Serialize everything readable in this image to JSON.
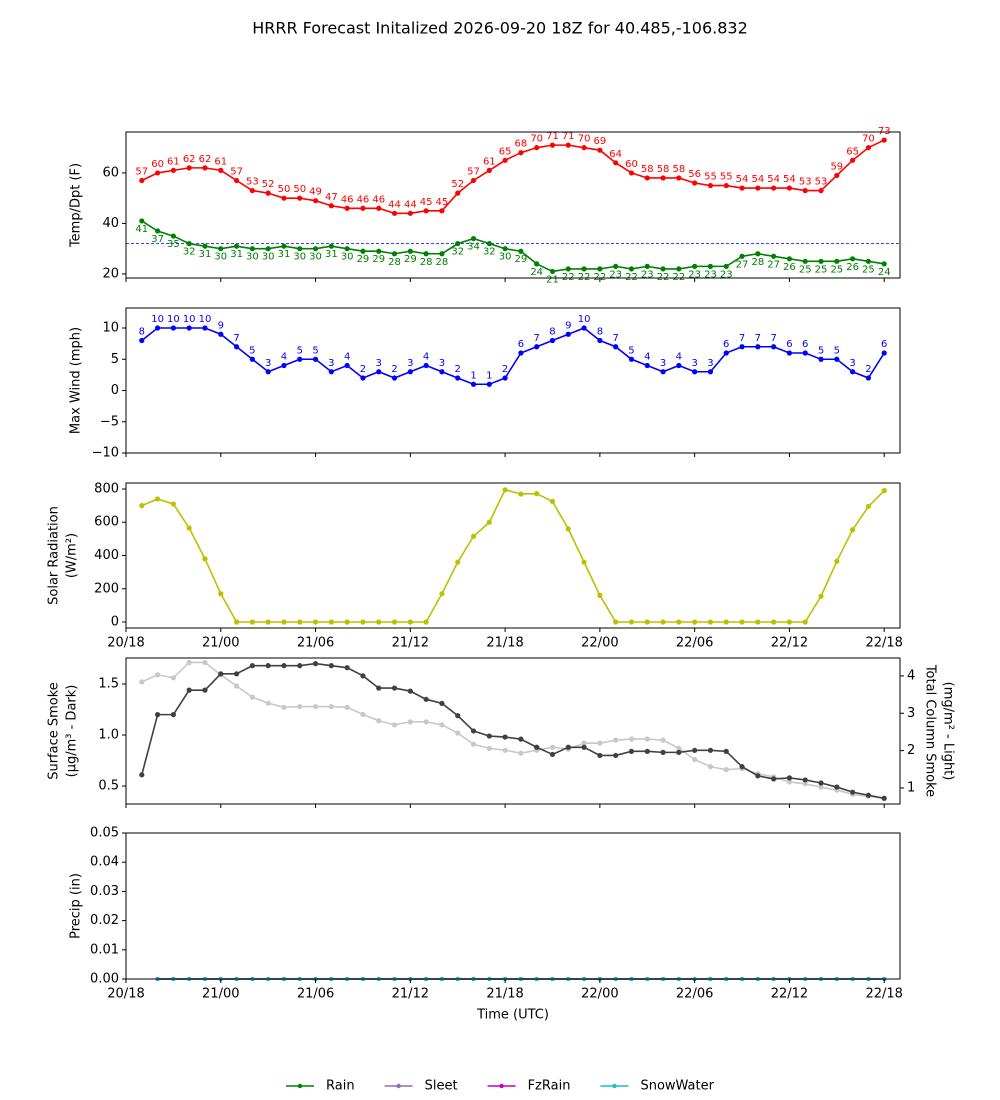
{
  "title": "HRRR Forecast Initalized 2026-09-20 18Z for 40.485,-106.832",
  "chart_data": [
    {
      "type": "line",
      "ylabel": "Temp/Dpt (F)",
      "x": [
        1,
        2,
        3,
        4,
        5,
        6,
        7,
        8,
        9,
        10,
        11,
        12,
        13,
        14,
        15,
        16,
        17,
        18,
        19,
        20,
        21,
        22,
        23,
        24,
        25,
        26,
        27,
        28,
        29,
        30,
        31,
        32,
        33,
        34,
        35,
        36,
        37,
        38,
        39,
        40,
        41,
        42,
        43,
        44,
        45,
        46,
        47,
        48
      ],
      "xlim": [
        0,
        49
      ],
      "xticks": [
        0,
        6,
        12,
        18,
        24,
        30,
        36,
        42,
        48
      ],
      "xticklabels": false,
      "ylim": [
        18.4,
        76.2
      ],
      "yticks": [
        20,
        40,
        60
      ],
      "hline": {
        "value": 32,
        "color": "#0000ff",
        "style": "dashed"
      },
      "series": [
        {
          "color": "#ff0000",
          "labels": "above",
          "values": [
            57,
            60,
            61,
            62,
            62,
            61,
            57,
            53,
            52,
            50,
            50,
            49,
            47,
            46,
            46,
            46,
            44,
            44,
            45,
            45,
            52,
            57,
            61,
            65,
            68,
            70,
            71,
            71,
            70,
            69,
            64,
            60,
            58,
            58,
            58,
            56,
            55,
            55,
            54,
            54,
            54,
            54,
            53,
            53,
            59,
            65,
            70,
            73
          ]
        },
        {
          "color": "#008000",
          "labels": "below",
          "values": [
            41,
            37,
            35,
            32,
            31,
            30,
            31,
            30,
            30,
            31,
            30,
            30,
            31,
            30,
            29,
            29,
            28,
            29,
            28,
            28,
            32,
            34,
            32,
            30,
            29,
            24,
            21,
            22,
            22,
            22,
            23,
            22,
            23,
            22,
            22,
            23,
            23,
            23,
            27,
            28,
            27,
            26,
            25,
            25,
            25,
            26,
            25,
            24
          ]
        }
      ]
    },
    {
      "type": "line",
      "ylabel": "Max Wind (mph)",
      "x": [
        1,
        2,
        3,
        4,
        5,
        6,
        7,
        8,
        9,
        10,
        11,
        12,
        13,
        14,
        15,
        16,
        17,
        18,
        19,
        20,
        21,
        22,
        23,
        24,
        25,
        26,
        27,
        28,
        29,
        30,
        31,
        32,
        33,
        34,
        35,
        36,
        37,
        38,
        39,
        40,
        41,
        42,
        43,
        44,
        45,
        46,
        47,
        48
      ],
      "xlim": [
        0,
        49
      ],
      "xticks": [
        0,
        6,
        12,
        18,
        24,
        30,
        36,
        42,
        48
      ],
      "xticklabels": false,
      "ylim": [
        -10,
        13.2
      ],
      "yticks": [
        {
          "value": -10,
          "label": "−10"
        },
        {
          "value": -5,
          "label": "−5"
        },
        0,
        5,
        10
      ],
      "series": [
        {
          "color": "#0000ff",
          "labels": "above",
          "values": [
            8,
            10,
            10,
            10,
            10,
            9,
            7,
            5,
            3,
            4,
            5,
            5,
            3,
            4,
            2,
            3,
            2,
            3,
            4,
            3,
            2,
            1,
            1,
            2,
            6,
            7,
            8,
            9,
            10,
            8,
            7,
            5,
            4,
            3,
            4,
            3,
            3,
            6,
            7,
            7,
            7,
            6,
            6,
            5,
            5,
            3,
            2,
            6
          ]
        }
      ]
    },
    {
      "type": "line",
      "ylabel": [
        "Solar Radiation",
        "(W/m²)"
      ],
      "x": [
        1,
        2,
        3,
        4,
        5,
        6,
        7,
        8,
        9,
        10,
        11,
        12,
        13,
        14,
        15,
        16,
        17,
        18,
        19,
        20,
        21,
        22,
        23,
        24,
        25,
        26,
        27,
        28,
        29,
        30,
        31,
        32,
        33,
        34,
        35,
        36,
        37,
        38,
        39,
        40,
        41,
        42,
        43,
        44,
        45,
        46,
        47,
        48
      ],
      "xlim": [
        0,
        49
      ],
      "xticks": [
        {
          "value": 0,
          "label": "20/18"
        },
        {
          "value": 6,
          "label": "21/00"
        },
        {
          "value": 12,
          "label": "21/06"
        },
        {
          "value": 18,
          "label": "21/12"
        },
        {
          "value": 24,
          "label": "21/18"
        },
        {
          "value": 30,
          "label": "22/00"
        },
        {
          "value": 36,
          "label": "22/06"
        },
        {
          "value": 42,
          "label": "22/12"
        },
        {
          "value": 48,
          "label": "22/18"
        }
      ],
      "ylim": [
        -36,
        836
      ],
      "yticks": [
        0,
        200,
        400,
        600,
        800
      ],
      "series": [
        {
          "color": "#bfbf00",
          "values": [
            700,
            740,
            710,
            565,
            380,
            170,
            0,
            0,
            0,
            0,
            0,
            0,
            0,
            0,
            0,
            0,
            0,
            0,
            0,
            170,
            360,
            515,
            600,
            795,
            770,
            772,
            725,
            560,
            360,
            160,
            0,
            0,
            0,
            0,
            0,
            0,
            0,
            0,
            0,
            0,
            0,
            0,
            0,
            155,
            365,
            555,
            695,
            790
          ]
        }
      ]
    },
    {
      "type": "line",
      "ylabel": [
        "Surface Smoke",
        "(µg/m³ - Dark)"
      ],
      "y2label": [
        "Total Column Smoke",
        "(mg/m² - Light)"
      ],
      "x": [
        1,
        2,
        3,
        4,
        5,
        6,
        7,
        8,
        9,
        10,
        11,
        12,
        13,
        14,
        15,
        16,
        17,
        18,
        19,
        20,
        21,
        22,
        23,
        24,
        25,
        26,
        27,
        28,
        29,
        30,
        31,
        32,
        33,
        34,
        35,
        36,
        37,
        38,
        39,
        40,
        41,
        42,
        43,
        44,
        45,
        46,
        47,
        48
      ],
      "xlim": [
        0,
        49
      ],
      "xticks": [
        0,
        6,
        12,
        18,
        24,
        30,
        36,
        42,
        48
      ],
      "xticklabels": false,
      "ylim": [
        0.324,
        1.755
      ],
      "yticks": [
        0.5,
        {
          "value": 1,
          "label": "1.0"
        },
        1.5
      ],
      "y2lim": [
        0.57,
        4.48
      ],
      "y2ticks": [
        1,
        2,
        3,
        4
      ],
      "series": [
        {
          "color": "#c8c8c8",
          "axis": "y2",
          "values": [
            3.84,
            4.03,
            3.95,
            4.36,
            4.36,
            4.03,
            3.73,
            3.43,
            3.27,
            3.16,
            3.18,
            3.18,
            3.18,
            3.16,
            2.97,
            2.8,
            2.69,
            2.77,
            2.77,
            2.69,
            2.47,
            2.17,
            2.06,
            2.01,
            1.93,
            2.01,
            2.09,
            2.04,
            2.2,
            2.2,
            2.28,
            2.31,
            2.31,
            2.28,
            2.06,
            1.76,
            1.57,
            1.49,
            1.52,
            1.38,
            1.3,
            1.16,
            1.11,
            1.02,
            0.94,
            0.83,
            0.78,
            0.72
          ]
        },
        {
          "color": "#404040",
          "values": [
            0.61,
            1.2,
            1.2,
            1.44,
            1.44,
            1.6,
            1.6,
            1.68,
            1.68,
            1.68,
            1.68,
            1.7,
            1.68,
            1.66,
            1.58,
            1.46,
            1.46,
            1.43,
            1.35,
            1.31,
            1.19,
            1.04,
            0.99,
            0.98,
            0.96,
            0.88,
            0.81,
            0.88,
            0.88,
            0.8,
            0.8,
            0.84,
            0.84,
            0.83,
            0.83,
            0.85,
            0.85,
            0.84,
            0.69,
            0.6,
            0.57,
            0.58,
            0.56,
            0.53,
            0.49,
            0.44,
            0.41,
            0.38
          ]
        }
      ]
    },
    {
      "type": "line",
      "ylabel": "Precip (in)",
      "xlabel": "Time (UTC)",
      "legend": "below",
      "x": [
        2,
        3,
        4,
        5,
        6,
        7,
        8,
        9,
        10,
        11,
        12,
        13,
        14,
        15,
        16,
        17,
        18,
        19,
        20,
        21,
        22,
        23,
        24,
        25,
        26,
        27,
        28,
        29,
        30,
        31,
        32,
        33,
        34,
        35,
        36,
        37,
        38,
        39,
        40,
        41,
        42,
        43,
        44,
        45,
        46,
        47,
        48
      ],
      "xlim": [
        0,
        49
      ],
      "xticks": [
        {
          "value": 0,
          "label": "20/18"
        },
        {
          "value": 6,
          "label": "21/00"
        },
        {
          "value": 12,
          "label": "21/06"
        },
        {
          "value": 18,
          "label": "21/12"
        },
        {
          "value": 24,
          "label": "21/18"
        },
        {
          "value": 30,
          "label": "22/00"
        },
        {
          "value": 36,
          "label": "22/06"
        },
        {
          "value": 42,
          "label": "22/12"
        },
        {
          "value": 48,
          "label": "22/18"
        }
      ],
      "ylim": [
        0,
        0.05
      ],
      "yticks": [
        {
          "value": 0,
          "label": "0.00"
        },
        0.01,
        0.02,
        0.03,
        0.04,
        0.05
      ],
      "series": [
        {
          "name": "Rain",
          "color": "#008000",
          "values": [
            0,
            0,
            0,
            0,
            0,
            0,
            0,
            0,
            0,
            0,
            0,
            0,
            0,
            0,
            0,
            0,
            0,
            0,
            0,
            0,
            0,
            0,
            0,
            0,
            0,
            0,
            0,
            0,
            0,
            0,
            0,
            0,
            0,
            0,
            0,
            0,
            0,
            0,
            0,
            0,
            0,
            0,
            0,
            0,
            0,
            0,
            0
          ]
        },
        {
          "name": "Sleet",
          "color": "#8e6fae",
          "values": [
            0,
            0,
            0,
            0,
            0,
            0,
            0,
            0,
            0,
            0,
            0,
            0,
            0,
            0,
            0,
            0,
            0,
            0,
            0,
            0,
            0,
            0,
            0,
            0,
            0,
            0,
            0,
            0,
            0,
            0,
            0,
            0,
            0,
            0,
            0,
            0,
            0,
            0,
            0,
            0,
            0,
            0,
            0,
            0,
            0,
            0,
            0
          ]
        },
        {
          "name": "FzRain",
          "color": "#c000c0",
          "values": [
            0,
            0,
            0,
            0,
            0,
            0,
            0,
            0,
            0,
            0,
            0,
            0,
            0,
            0,
            0,
            0,
            0,
            0,
            0,
            0,
            0,
            0,
            0,
            0,
            0,
            0,
            0,
            0,
            0,
            0,
            0,
            0,
            0,
            0,
            0,
            0,
            0,
            0,
            0,
            0,
            0,
            0,
            0,
            0,
            0,
            0,
            0
          ]
        },
        {
          "name": "SnowWater",
          "color": "#17becf",
          "values": [
            0,
            0,
            0,
            0,
            0,
            0,
            0,
            0,
            0,
            0,
            0,
            0,
            0,
            0,
            0,
            0,
            0,
            0,
            0,
            0,
            0,
            0,
            0,
            0,
            0,
            0,
            0,
            0,
            0,
            0,
            0,
            0,
            0,
            0,
            0,
            0,
            0,
            0,
            0,
            0,
            0,
            0,
            0,
            0,
            0,
            0,
            0
          ]
        }
      ]
    }
  ]
}
